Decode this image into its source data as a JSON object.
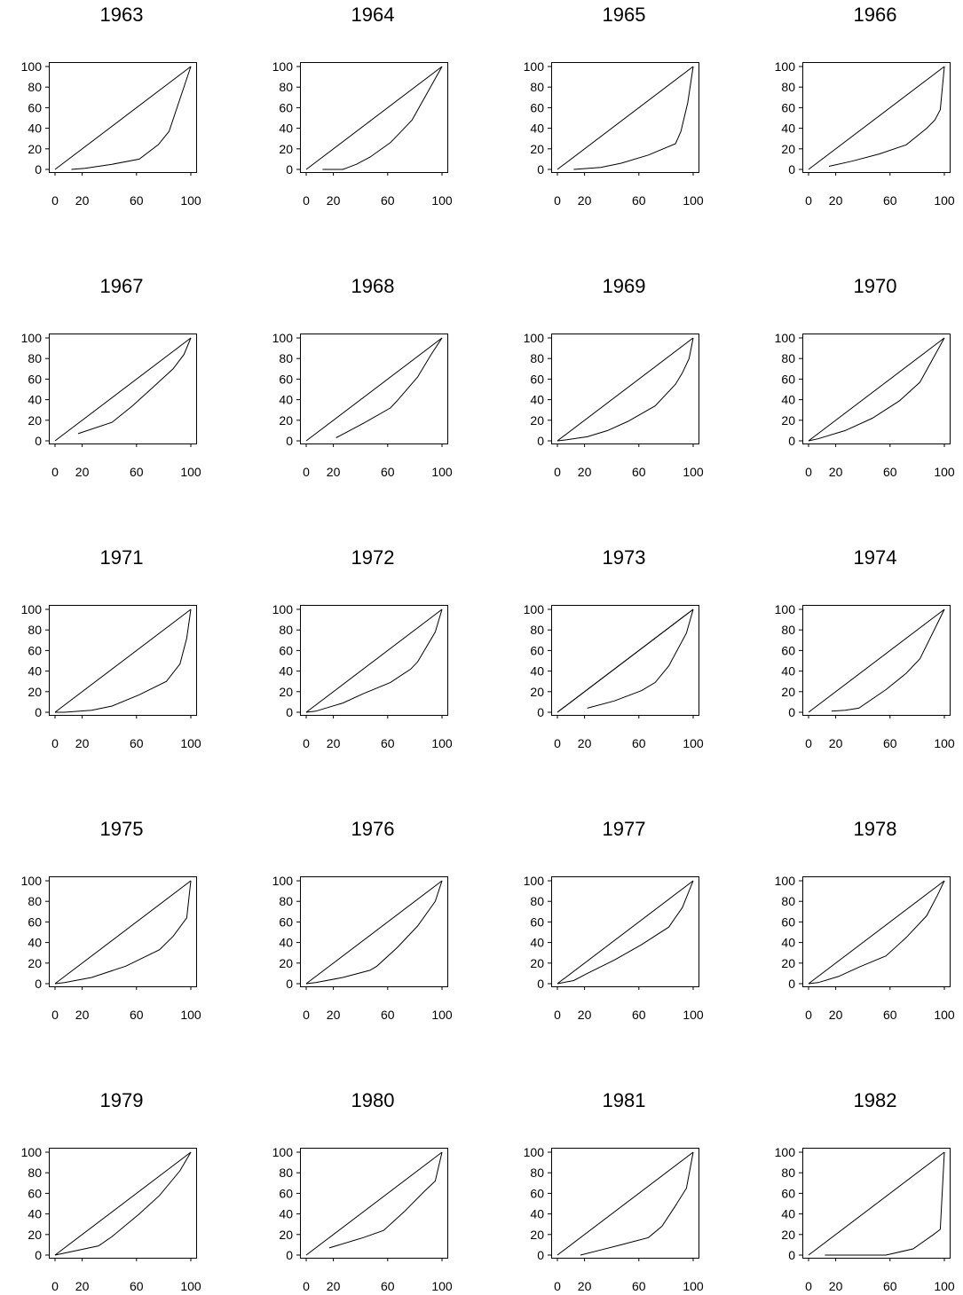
{
  "colors": {
    "background": "#ffffff",
    "line": "#000000"
  },
  "chart_data": [
    {
      "type": "line",
      "title": "1963",
      "xticks": [
        "0",
        "20",
        "60",
        "100"
      ],
      "yticks": [
        "0",
        "20",
        "40",
        "60",
        "80",
        "100"
      ],
      "xlim": [
        0,
        100
      ],
      "ylim": [
        0,
        100
      ],
      "series": [
        {
          "x": [
            0,
            100
          ],
          "y": [
            0,
            100
          ]
        },
        {
          "x": [
            12,
            22,
            42,
            62,
            76,
            84,
            100
          ],
          "y": [
            0,
            1,
            5,
            10,
            24,
            37,
            100
          ]
        }
      ]
    },
    {
      "type": "line",
      "title": "1964",
      "xticks": [
        "0",
        "20",
        "60",
        "100"
      ],
      "yticks": [
        "0",
        "20",
        "40",
        "60",
        "80",
        "100"
      ],
      "xlim": [
        0,
        100
      ],
      "ylim": [
        0,
        100
      ],
      "series": [
        {
          "x": [
            0,
            100
          ],
          "y": [
            0,
            100
          ]
        },
        {
          "x": [
            12,
            27,
            31,
            37,
            47,
            62,
            78,
            100
          ],
          "y": [
            0,
            0,
            2,
            5,
            12,
            26,
            48,
            100
          ]
        }
      ]
    },
    {
      "type": "line",
      "title": "1965",
      "xticks": [
        "0",
        "20",
        "60",
        "100"
      ],
      "yticks": [
        "0",
        "20",
        "40",
        "60",
        "80",
        "100"
      ],
      "xlim": [
        0,
        100
      ],
      "ylim": [
        0,
        100
      ],
      "series": [
        {
          "x": [
            0,
            100
          ],
          "y": [
            0,
            100
          ]
        },
        {
          "x": [
            12,
            32,
            47,
            67,
            87,
            91,
            96,
            100
          ],
          "y": [
            0,
            2,
            6,
            14,
            25,
            37,
            65,
            100
          ]
        }
      ]
    },
    {
      "type": "line",
      "title": "1966",
      "xticks": [
        "0",
        "20",
        "60",
        "100"
      ],
      "yticks": [
        "0",
        "20",
        "40",
        "60",
        "80",
        "100"
      ],
      "xlim": [
        0,
        100
      ],
      "ylim": [
        0,
        100
      ],
      "series": [
        {
          "x": [
            0,
            100
          ],
          "y": [
            0,
            100
          ]
        },
        {
          "x": [
            15,
            32,
            52,
            72,
            87,
            93,
            97,
            100
          ],
          "y": [
            3,
            8,
            15,
            24,
            40,
            48,
            58,
            100
          ]
        }
      ]
    },
    {
      "type": "line",
      "title": "1967",
      "xticks": [
        "0",
        "20",
        "60",
        "100"
      ],
      "yticks": [
        "0",
        "20",
        "40",
        "60",
        "80",
        "100"
      ],
      "xlim": [
        0,
        100
      ],
      "ylim": [
        0,
        100
      ],
      "series": [
        {
          "x": [
            0,
            100
          ],
          "y": [
            0,
            100
          ]
        },
        {
          "x": [
            17,
            42,
            57,
            72,
            87,
            95,
            100
          ],
          "y": [
            7,
            18,
            34,
            52,
            70,
            84,
            100
          ]
        }
      ]
    },
    {
      "type": "line",
      "title": "1968",
      "xticks": [
        "0",
        "20",
        "60",
        "100"
      ],
      "yticks": [
        "0",
        "20",
        "40",
        "60",
        "80",
        "100"
      ],
      "xlim": [
        0,
        100
      ],
      "ylim": [
        0,
        100
      ],
      "series": [
        {
          "x": [
            0,
            100
          ],
          "y": [
            0,
            100
          ]
        },
        {
          "x": [
            22,
            42,
            62,
            67,
            82,
            92,
            100
          ],
          "y": [
            3,
            17,
            32,
            39,
            62,
            84,
            100
          ]
        }
      ]
    },
    {
      "type": "line",
      "title": "1969",
      "xticks": [
        "0",
        "20",
        "60",
        "100"
      ],
      "yticks": [
        "0",
        "20",
        "40",
        "60",
        "80",
        "100"
      ],
      "xlim": [
        0,
        100
      ],
      "ylim": [
        0,
        100
      ],
      "series": [
        {
          "x": [
            0,
            100
          ],
          "y": [
            0,
            100
          ]
        },
        {
          "x": [
            0,
            7,
            22,
            37,
            52,
            72,
            87,
            92,
            97,
            100
          ],
          "y": [
            0,
            1,
            4,
            10,
            19,
            34,
            55,
            66,
            80,
            100
          ]
        }
      ]
    },
    {
      "type": "line",
      "title": "1970",
      "xticks": [
        "0",
        "20",
        "60",
        "100"
      ],
      "yticks": [
        "0",
        "20",
        "40",
        "60",
        "80",
        "100"
      ],
      "xlim": [
        0,
        100
      ],
      "ylim": [
        0,
        100
      ],
      "series": [
        {
          "x": [
            0,
            100
          ],
          "y": [
            0,
            100
          ]
        },
        {
          "x": [
            0,
            7,
            27,
            47,
            67,
            82,
            100
          ],
          "y": [
            0,
            2,
            10,
            22,
            39,
            57,
            100
          ]
        }
      ]
    },
    {
      "type": "line",
      "title": "1971",
      "xticks": [
        "0",
        "20",
        "60",
        "100"
      ],
      "yticks": [
        "0",
        "20",
        "40",
        "60",
        "80",
        "100"
      ],
      "xlim": [
        0,
        100
      ],
      "ylim": [
        0,
        100
      ],
      "series": [
        {
          "x": [
            0,
            100
          ],
          "y": [
            0,
            100
          ]
        },
        {
          "x": [
            0,
            7,
            27,
            42,
            62,
            82,
            92,
            97,
            100
          ],
          "y": [
            0,
            0,
            2,
            6,
            17,
            30,
            47,
            72,
            100
          ]
        }
      ]
    },
    {
      "type": "line",
      "title": "1972",
      "xticks": [
        "0",
        "20",
        "60",
        "100"
      ],
      "yticks": [
        "0",
        "20",
        "40",
        "60",
        "80",
        "100"
      ],
      "xlim": [
        0,
        100
      ],
      "ylim": [
        0,
        100
      ],
      "series": [
        {
          "x": [
            0,
            100
          ],
          "y": [
            0,
            100
          ]
        },
        {
          "x": [
            0,
            7,
            27,
            42,
            62,
            77,
            82,
            95,
            100
          ],
          "y": [
            0,
            1,
            9,
            18,
            29,
            42,
            49,
            78,
            100
          ]
        }
      ]
    },
    {
      "type": "line",
      "title": "1973",
      "xticks": [
        "0",
        "20",
        "60",
        "100"
      ],
      "yticks": [
        "0",
        "20",
        "40",
        "60",
        "80",
        "100"
      ],
      "xlim": [
        0,
        100
      ],
      "ylim": [
        0,
        100
      ],
      "series": [
        {
          "x": [
            0,
            100
          ],
          "y": [
            0,
            100
          ]
        },
        {
          "x": [
            0,
            100
          ],
          "y": [
            0,
            100
          ]
        },
        {
          "x": [
            22,
            42,
            62,
            72,
            82,
            95,
            100
          ],
          "y": [
            4,
            11,
            21,
            29,
            45,
            77,
            100
          ]
        }
      ]
    },
    {
      "type": "line",
      "title": "1974",
      "xticks": [
        "0",
        "20",
        "60",
        "100"
      ],
      "yticks": [
        "0",
        "20",
        "40",
        "60",
        "80",
        "100"
      ],
      "xlim": [
        0,
        100
      ],
      "ylim": [
        0,
        100
      ],
      "series": [
        {
          "x": [
            0,
            100
          ],
          "y": [
            0,
            100
          ]
        },
        {
          "x": [
            17,
            27,
            37,
            57,
            72,
            82,
            100
          ],
          "y": [
            1,
            2,
            4,
            22,
            38,
            52,
            100
          ]
        }
      ]
    },
    {
      "type": "line",
      "title": "1975",
      "xticks": [
        "0",
        "20",
        "60",
        "100"
      ],
      "yticks": [
        "0",
        "20",
        "40",
        "60",
        "80",
        "100"
      ],
      "xlim": [
        0,
        100
      ],
      "ylim": [
        0,
        100
      ],
      "series": [
        {
          "x": [
            0,
            100
          ],
          "y": [
            0,
            100
          ]
        },
        {
          "x": [
            0,
            7,
            27,
            52,
            77,
            87,
            97,
            100
          ],
          "y": [
            0,
            1,
            6,
            17,
            33,
            46,
            64,
            100
          ]
        }
      ]
    },
    {
      "type": "line",
      "title": "1976",
      "xticks": [
        "0",
        "20",
        "60",
        "100"
      ],
      "yticks": [
        "0",
        "20",
        "40",
        "60",
        "80",
        "100"
      ],
      "xlim": [
        0,
        100
      ],
      "ylim": [
        0,
        100
      ],
      "series": [
        {
          "x": [
            0,
            100
          ],
          "y": [
            0,
            100
          ]
        },
        {
          "x": [
            0,
            7,
            27,
            47,
            52,
            67,
            82,
            95,
            100
          ],
          "y": [
            0,
            1,
            6,
            13,
            17,
            35,
            56,
            80,
            100
          ]
        }
      ]
    },
    {
      "type": "line",
      "title": "1977",
      "xticks": [
        "0",
        "20",
        "60",
        "100"
      ],
      "yticks": [
        "0",
        "20",
        "40",
        "60",
        "80",
        "100"
      ],
      "xlim": [
        0,
        100
      ],
      "ylim": [
        0,
        100
      ],
      "series": [
        {
          "x": [
            0,
            100
          ],
          "y": [
            0,
            100
          ]
        },
        {
          "x": [
            0,
            12,
            22,
            42,
            62,
            82,
            92,
            100
          ],
          "y": [
            0,
            3,
            10,
            23,
            38,
            55,
            74,
            100
          ]
        }
      ]
    },
    {
      "type": "line",
      "title": "1978",
      "xticks": [
        "0",
        "20",
        "60",
        "100"
      ],
      "yticks": [
        "0",
        "20",
        "40",
        "60",
        "80",
        "100"
      ],
      "xlim": [
        0,
        100
      ],
      "ylim": [
        0,
        100
      ],
      "series": [
        {
          "x": [
            0,
            100
          ],
          "y": [
            0,
            100
          ]
        },
        {
          "x": [
            0,
            7,
            22,
            37,
            57,
            72,
            87,
            95,
            100
          ],
          "y": [
            0,
            1,
            7,
            16,
            27,
            45,
            66,
            86,
            100
          ]
        }
      ]
    },
    {
      "type": "line",
      "title": "1979",
      "xticks": [
        "0",
        "20",
        "60",
        "100"
      ],
      "yticks": [
        "0",
        "20",
        "40",
        "60",
        "80",
        "100"
      ],
      "xlim": [
        0,
        100
      ],
      "ylim": [
        0,
        100
      ],
      "series": [
        {
          "x": [
            0,
            100
          ],
          "y": [
            0,
            100
          ]
        },
        {
          "x": [
            0,
            7,
            32,
            42,
            62,
            77,
            92,
            100
          ],
          "y": [
            0,
            2,
            9,
            18,
            40,
            58,
            82,
            100
          ]
        }
      ]
    },
    {
      "type": "line",
      "title": "1980",
      "xticks": [
        "0",
        "20",
        "60",
        "100"
      ],
      "yticks": [
        "0",
        "20",
        "40",
        "60",
        "80",
        "100"
      ],
      "xlim": [
        0,
        100
      ],
      "ylim": [
        0,
        100
      ],
      "series": [
        {
          "x": [
            0,
            100
          ],
          "y": [
            0,
            100
          ]
        },
        {
          "x": [
            17,
            42,
            57,
            72,
            87,
            95,
            100
          ],
          "y": [
            7,
            17,
            24,
            42,
            62,
            72,
            100
          ]
        }
      ]
    },
    {
      "type": "line",
      "title": "1981",
      "xticks": [
        "0",
        "20",
        "60",
        "100"
      ],
      "yticks": [
        "0",
        "20",
        "40",
        "60",
        "80",
        "100"
      ],
      "xlim": [
        0,
        100
      ],
      "ylim": [
        0,
        100
      ],
      "series": [
        {
          "x": [
            0,
            100
          ],
          "y": [
            0,
            100
          ]
        },
        {
          "x": [
            17,
            32,
            47,
            67,
            77,
            87,
            95,
            100
          ],
          "y": [
            0,
            5,
            10,
            17,
            28,
            48,
            65,
            100
          ]
        }
      ]
    },
    {
      "type": "line",
      "title": "1982",
      "xticks": [
        "0",
        "20",
        "60",
        "100"
      ],
      "yticks": [
        "0",
        "20",
        "40",
        "60",
        "80",
        "100"
      ],
      "xlim": [
        0,
        100
      ],
      "ylim": [
        0,
        100
      ],
      "series": [
        {
          "x": [
            0,
            100
          ],
          "y": [
            0,
            100
          ]
        },
        {
          "x": [
            12,
            57,
            77,
            92,
            97,
            100
          ],
          "y": [
            0,
            0,
            6,
            20,
            25,
            100
          ]
        }
      ]
    }
  ]
}
